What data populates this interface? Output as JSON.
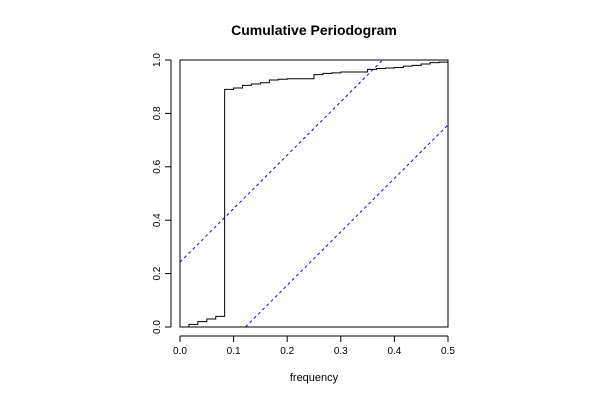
{
  "chart_data": {
    "type": "line",
    "title": "Cumulative Periodogram",
    "xlabel": "frequency",
    "ylabel": "",
    "xlim": [
      0,
      0.5
    ],
    "ylim": [
      0,
      1
    ],
    "x_ticks": [
      "0.0",
      "0.1",
      "0.2",
      "0.3",
      "0.4",
      "0.5"
    ],
    "y_ticks": [
      "0.0",
      "0.2",
      "0.4",
      "0.6",
      "0.8",
      "1.0"
    ],
    "grid": false,
    "series": [
      {
        "style": "step",
        "color": "#000000",
        "x": [
          0,
          0.0167,
          0.0333,
          0.05,
          0.0667,
          0.0833,
          0.1,
          0.1167,
          0.1333,
          0.15,
          0.1667,
          0.1833,
          0.2,
          0.2167,
          0.2333,
          0.25,
          0.2667,
          0.2833,
          0.3,
          0.3167,
          0.3333,
          0.35,
          0.3667,
          0.3833,
          0.4,
          0.4167,
          0.4333,
          0.45,
          0.4667,
          0.4833,
          0.5
        ],
        "y": [
          0,
          0.01,
          0.02,
          0.03,
          0.04,
          0.89,
          0.895,
          0.905,
          0.91,
          0.915,
          0.925,
          0.928,
          0.93,
          0.93,
          0.93,
          0.945,
          0.95,
          0.952,
          0.955,
          0.955,
          0.955,
          0.965,
          0.968,
          0.97,
          0.972,
          0.977,
          0.98,
          0.985,
          0.99,
          0.992,
          1.0
        ]
      },
      {
        "style": "dashed",
        "color": "#0000ff",
        "x": [
          0,
          0.378
        ],
        "y": [
          0.243,
          1.0
        ]
      },
      {
        "style": "dashed",
        "color": "#0000ff",
        "x": [
          0.122,
          0.5
        ],
        "y": [
          0,
          0.757
        ]
      }
    ]
  }
}
